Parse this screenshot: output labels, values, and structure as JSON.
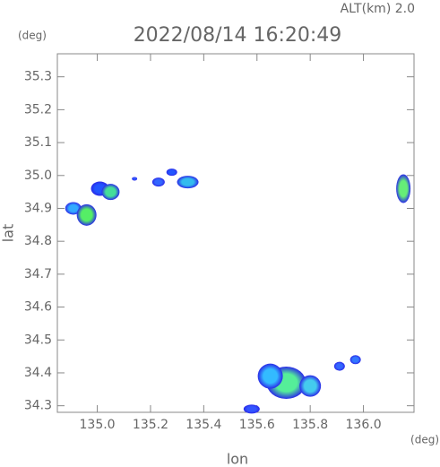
{
  "chart_data": {
    "type": "scatter",
    "title": "2022/08/14 16:20:49",
    "subtitle": "ALT(km) 2.0",
    "y_unit": "(deg)",
    "x_unit": "(deg)",
    "xlabel": "lon",
    "ylabel": "lat",
    "x": [
      134.91,
      134.96,
      135.01,
      135.05,
      135.14,
      135.23,
      135.28,
      135.34,
      136.15,
      135.71,
      135.65,
      135.8,
      135.58,
      135.91,
      135.97
    ],
    "values": [
      34.9,
      34.88,
      34.96,
      34.95,
      34.99,
      34.98,
      35.01,
      34.98,
      34.96,
      34.37,
      34.39,
      34.36,
      34.29,
      34.42,
      34.44
    ],
    "colors": [
      "#33aaff",
      "#55ee66",
      "#2255ff",
      "#44dd99",
      "#3355ff",
      "#3366ff",
      "#2255ff",
      "#33bbee",
      "#66ee77",
      "#55ee99",
      "#33bbff",
      "#44ccee",
      "#3355ff",
      "#3366ff",
      "#3377ff"
    ],
    "xlim": [
      134.85,
      136.19
    ],
    "ylim": [
      34.28,
      35.37
    ],
    "xticks": [
      {
        "value": 135,
        "label": "135.0"
      },
      {
        "value": 135.2,
        "label": "135.2"
      },
      {
        "value": 135.4,
        "label": "135.4"
      },
      {
        "value": 135.6,
        "label": "135.6"
      },
      {
        "value": 135.8,
        "label": "135.8"
      },
      {
        "value": 136,
        "label": "136.0"
      }
    ],
    "yticks": [
      34.3,
      34.4,
      34.5,
      34.6,
      34.7,
      34.8,
      34.9,
      {
        "value": 35,
        "label": "35.0"
      },
      35.1,
      35.2,
      35.3
    ]
  }
}
